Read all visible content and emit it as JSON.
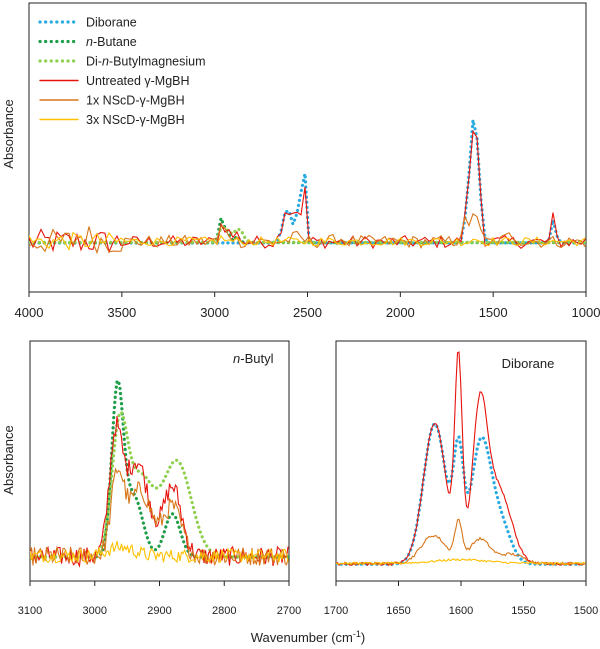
{
  "figure": {
    "ylabel": "Absorbance",
    "xlabel_prefix": "Wavenumber (cm",
    "xlabel_sup": "-1",
    "xlabel_suffix": ")"
  },
  "colors": {
    "diborane": "#29aae1",
    "butane": "#1f9e4a",
    "dibutylmg": "#8fd14f",
    "untreated": "#e8120c",
    "nscd1x": "#d8761a",
    "nscd3x": "#ffc000"
  },
  "chart_data": [
    {
      "type": "line",
      "title": "",
      "xlabel": "",
      "ylabel": "Absorbance",
      "xlim": [
        4000,
        1000
      ],
      "xticks": [
        4000,
        3500,
        3000,
        2500,
        2000,
        1500,
        1000
      ],
      "x_reversed": true,
      "grid": false,
      "legend_position": "top-left",
      "series": [
        {
          "name": "Diborane",
          "key": "diborane",
          "style": "dotted",
          "peaks": [
            [
              2610,
              0.45,
              22
            ],
            [
              2540,
              0.5,
              20
            ],
            [
              2520,
              0.95,
              8
            ],
            [
              1622,
              0.95,
              20
            ],
            [
              1600,
              1.05,
              8
            ],
            [
              1582,
              0.9,
              16
            ],
            [
              1175,
              0.3,
              12
            ]
          ]
        },
        {
          "name": "n-Butane",
          "key": "butane",
          "style": "dotted",
          "peaks": [
            [
              2965,
              0.3,
              12
            ],
            [
              2935,
              0.15,
              14
            ],
            [
              2880,
              0.08,
              12
            ]
          ]
        },
        {
          "name": "Di-n-Butylmagnesium",
          "key": "dibutylmg",
          "style": "dotted",
          "peaks": [
            [
              2960,
              0.18,
              14
            ],
            [
              2930,
              0.12,
              20
            ],
            [
              2870,
              0.18,
              22
            ]
          ]
        },
        {
          "name": "Untreated γ-MgBH",
          "key": "untreated",
          "style": "solid",
          "peaks": [
            [
              2960,
              0.22,
              14
            ],
            [
              2925,
              0.12,
              20
            ],
            [
              2875,
              0.09,
              14
            ],
            [
              2615,
              0.42,
              22
            ],
            [
              2560,
              0.42,
              20
            ],
            [
              2520,
              1.05,
              7
            ],
            [
              1622,
              0.95,
              20
            ],
            [
              1600,
              1.2,
              6
            ],
            [
              1582,
              1.1,
              14
            ],
            [
              1175,
              0.32,
              10
            ]
          ]
        },
        {
          "name": "1x NScD-γ-MgBH",
          "key": "nscd1x",
          "style": "solid",
          "peaks": [
            [
              3700,
              0.08,
              40
            ],
            [
              2960,
              0.18,
              14
            ],
            [
              2920,
              0.1,
              20
            ],
            [
              2560,
              0.06,
              30
            ],
            [
              2330,
              0.05,
              20
            ],
            [
              1650,
              0.25,
              20
            ],
            [
              1600,
              0.5,
              10
            ],
            [
              1580,
              0.15,
              14
            ],
            [
              1400,
              0.08,
              30
            ]
          ]
        },
        {
          "name": "3x NScD-γ-MgBH",
          "key": "nscd3x",
          "style": "solid",
          "peaks": [
            [
              2960,
              0.04,
              14
            ],
            [
              1600,
              0.06,
              10
            ]
          ]
        }
      ]
    },
    {
      "type": "line",
      "title": "n-Butyl",
      "xlabel": "",
      "ylabel": "Absorbance",
      "xlim": [
        3100,
        2700
      ],
      "xticks": [
        3100,
        3000,
        2900,
        2800,
        2700
      ],
      "x_reversed": true,
      "grid": false,
      "series": [
        {
          "key": "butane",
          "style": "dotted",
          "peaks": [
            [
              2965,
              0.95,
              9
            ],
            [
              2940,
              0.35,
              14
            ],
            [
              2880,
              0.25,
              12
            ]
          ]
        },
        {
          "key": "dibutylmg",
          "style": "dotted",
          "peaks": [
            [
              2962,
              0.7,
              12
            ],
            [
              2930,
              0.45,
              20
            ],
            [
              2873,
              0.55,
              22
            ]
          ]
        },
        {
          "key": "untreated",
          "style": "solid",
          "peaks": [
            [
              2968,
              0.65,
              10
            ],
            [
              2935,
              0.55,
              18
            ],
            [
              2880,
              0.4,
              14
            ]
          ]
        },
        {
          "key": "nscd1x",
          "style": "solid",
          "peaks": [
            [
              2965,
              0.45,
              10
            ],
            [
              2930,
              0.38,
              18
            ],
            [
              2880,
              0.28,
              14
            ]
          ]
        },
        {
          "key": "nscd3x",
          "style": "solid",
          "peaks": [
            [
              2960,
              0.05,
              20
            ]
          ]
        }
      ]
    },
    {
      "type": "line",
      "title": "Diborane",
      "xlabel": "",
      "ylabel": "",
      "xlim": [
        1700,
        1500
      ],
      "xticks": [
        1700,
        1650,
        1600,
        1550,
        1500
      ],
      "x_reversed": true,
      "grid": false,
      "series": [
        {
          "key": "diborane",
          "style": "dotted",
          "peaks": [
            [
              1621,
              0.75,
              9
            ],
            [
              1602,
              0.55,
              4
            ],
            [
              1584,
              0.65,
              8
            ],
            [
              1568,
              0.2,
              8
            ]
          ]
        },
        {
          "key": "untreated",
          "style": "solid",
          "peaks": [
            [
              1621,
              0.75,
              9
            ],
            [
              1602,
              1.05,
              3
            ],
            [
              1585,
              0.78,
              6
            ],
            [
              1570,
              0.4,
              10
            ]
          ]
        },
        {
          "key": "nscd1x",
          "style": "solid",
          "peaks": [
            [
              1622,
              0.15,
              10
            ],
            [
              1602,
              0.2,
              3
            ],
            [
              1585,
              0.13,
              8
            ],
            [
              1560,
              0.05,
              10
            ]
          ]
        },
        {
          "key": "nscd3x",
          "style": "solid",
          "peaks": [
            [
              1600,
              0.02,
              20
            ]
          ]
        }
      ]
    }
  ]
}
